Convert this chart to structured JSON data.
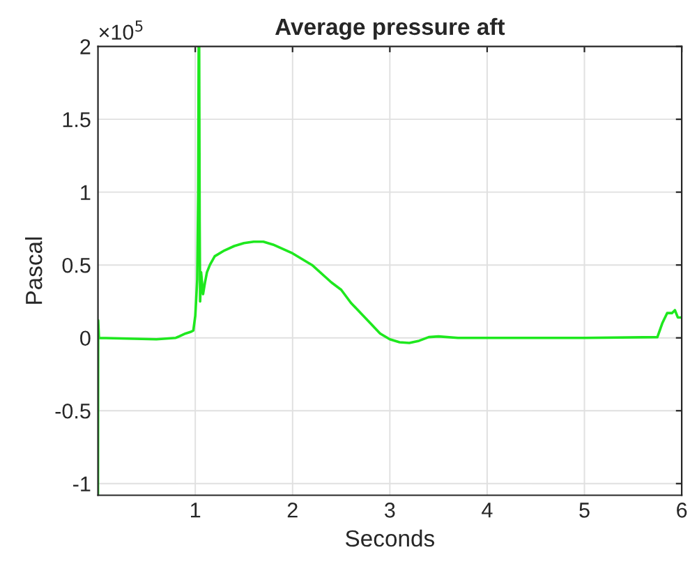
{
  "chart_data": {
    "type": "line",
    "title": "Average pressure aft",
    "xlabel": "Seconds",
    "ylabel": "Pascal",
    "annotations": [
      "×10$^{5}$"
    ],
    "series": [
      {
        "color": "#1ee81e",
        "x": [
          0,
          0.002,
          0.01,
          0.3,
          0.6,
          0.8,
          0.9,
          0.95,
          0.98,
          1.0,
          1.02,
          1.03,
          1.035,
          1.04,
          1.045,
          1.05,
          1.06,
          1.08,
          1.1,
          1.12,
          1.15,
          1.2,
          1.3,
          1.4,
          1.5,
          1.6,
          1.7,
          1.8,
          2.0,
          2.2,
          2.4,
          2.5,
          2.6,
          2.8,
          2.9,
          3.0,
          3.1,
          3.2,
          3.3,
          3.4,
          3.5,
          3.7,
          4,
          5,
          5.75,
          5.8,
          5.85,
          5.9,
          5.93,
          5.96,
          6
        ],
        "values": [
          -1.08,
          0.12,
          0,
          -0.005,
          -0.01,
          0.0,
          0.03,
          0.04,
          0.05,
          0.15,
          0.4,
          1.0,
          2.0,
          2.0,
          0.8,
          0.25,
          0.45,
          0.3,
          0.38,
          0.45,
          0.5,
          0.56,
          0.6,
          0.63,
          0.65,
          0.66,
          0.66,
          0.64,
          0.58,
          0.5,
          0.38,
          0.33,
          0.24,
          0.1,
          0.03,
          -0.01,
          -0.03,
          -0.035,
          -0.02,
          0.005,
          0.01,
          0.0,
          0,
          0,
          0.005,
          0.1,
          0.17,
          0.17,
          0.19,
          0.14,
          0.14
        ]
      }
    ],
    "xlim": [
      0,
      6
    ],
    "xticks": [
      1,
      2,
      3,
      4,
      5,
      6
    ],
    "ylim": [
      -1.08,
      2
    ],
    "yticks": [
      -1,
      -0.5,
      0,
      0.5,
      1,
      1.5,
      2
    ],
    "grid": true,
    "line_style": "solid",
    "marker": "none"
  }
}
